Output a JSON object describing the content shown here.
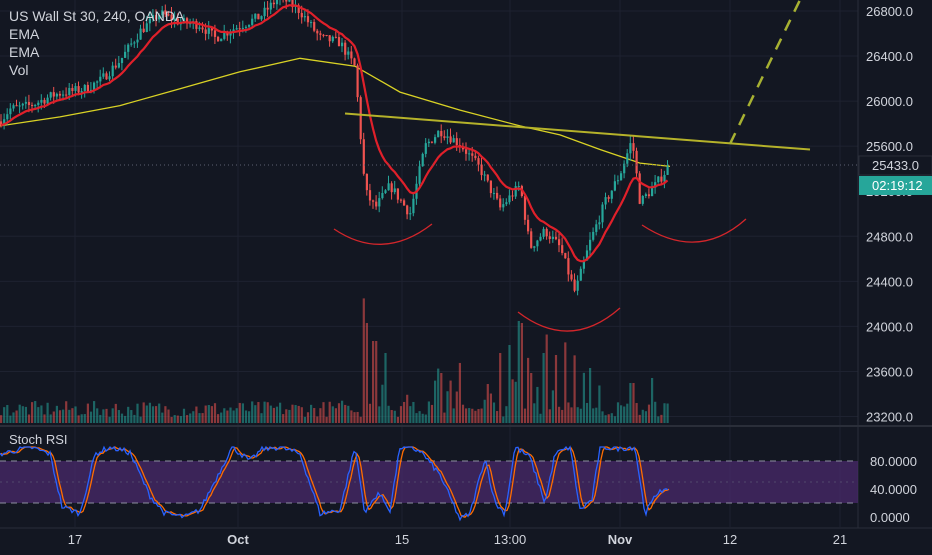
{
  "legend": {
    "symbol": "US Wall St 30, 240, OANDA",
    "ind1": "EMA",
    "ind2": "EMA",
    "ind3": "Vol"
  },
  "price_badge": {
    "value": "25433.0",
    "countdown": "02:19:12"
  },
  "partial_tick": "25200.0",
  "rsi_label": "Stoch RSI",
  "colors": {
    "background": "#131722",
    "up": "#26a69a",
    "down": "#ef5350",
    "ema_fast": "#e0202a",
    "ema_slow": "#d9d225",
    "neckline": "#b5b22a",
    "projection": "#a7b132",
    "stoch_k": "#2962ff",
    "stoch_d": "#ff6d00",
    "stoch_band": "#4a2a6b",
    "badge": "#26a69a"
  },
  "chart_data": [
    {
      "type": "candlestick",
      "title": "US Wall St 30, 240, OANDA",
      "y_ticks": [
        26800,
        26400,
        26000,
        25600,
        24800,
        24400,
        24000,
        23600,
        23200
      ],
      "x_ticks": [
        "17",
        "Oct",
        "15",
        "13:00",
        "Nov",
        "12",
        "21"
      ],
      "ylim": [
        23150,
        26950
      ],
      "last_price": 25433.0,
      "series": [
        {
          "name": "price",
          "ohlc_path": [
            [
              0,
              25820
            ],
            [
              10,
              25930
            ],
            [
              30,
              25960
            ],
            [
              55,
              26060
            ],
            [
              85,
              26110
            ],
            [
              100,
              26180
            ],
            [
              120,
              26360
            ],
            [
              140,
              26620
            ],
            [
              160,
              26780
            ],
            [
              180,
              26700
            ],
            [
              200,
              26680
            ],
            [
              215,
              26560
            ],
            [
              235,
              26650
            ],
            [
              260,
              26750
            ],
            [
              280,
              26930
            ],
            [
              300,
              26800
            ],
            [
              320,
              26560
            ],
            [
              340,
              26520
            ],
            [
              355,
              26300
            ],
            [
              365,
              25200
            ],
            [
              375,
              25050
            ],
            [
              390,
              25250
            ],
            [
              410,
              25000
            ],
            [
              425,
              25600
            ],
            [
              440,
              25740
            ],
            [
              460,
              25620
            ],
            [
              480,
              25400
            ],
            [
              500,
              25050
            ],
            [
              520,
              25250
            ],
            [
              530,
              24700
            ],
            [
              545,
              24850
            ],
            [
              560,
              24700
            ],
            [
              575,
              24300
            ],
            [
              590,
              24750
            ],
            [
              605,
              25100
            ],
            [
              620,
              25350
            ],
            [
              632,
              25660
            ],
            [
              640,
              25100
            ],
            [
              655,
              25250
            ],
            [
              670,
              25433
            ]
          ]
        },
        {
          "name": "EMA 20",
          "role": "fast"
        },
        {
          "name": "EMA 200",
          "role": "slow"
        },
        {
          "name": "Vol",
          "role": "volume"
        }
      ],
      "annotations": {
        "neckline": [
          [
            345,
            25890
          ],
          [
            810,
            25570
          ]
        ],
        "projection": [
          [
            730,
            25620
          ],
          [
            805,
            26990
          ]
        ],
        "arcs": [
          "left-shoulder",
          "head",
          "right-shoulder"
        ]
      }
    },
    {
      "type": "line",
      "title": "Stoch RSI",
      "y_ticks": [
        80,
        40,
        0
      ],
      "ylim": [
        -6,
        98
      ],
      "bands": [
        20,
        80
      ],
      "series": [
        {
          "name": "K"
        },
        {
          "name": "D"
        }
      ]
    }
  ]
}
